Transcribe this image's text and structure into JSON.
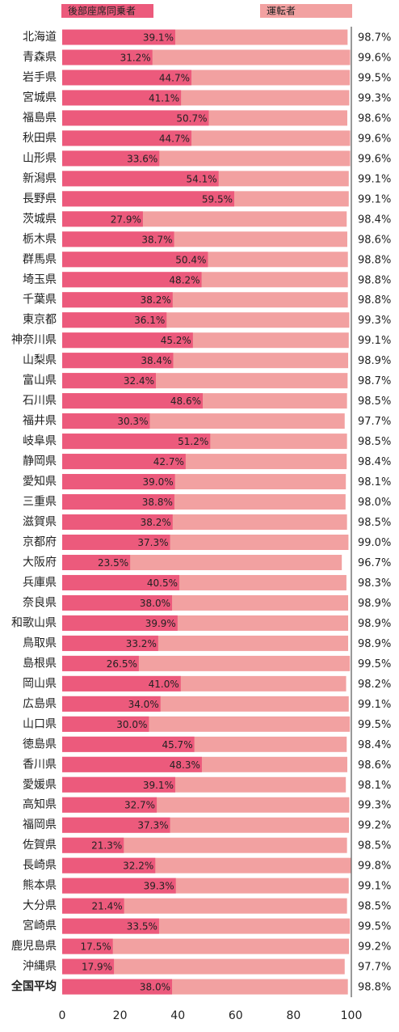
{
  "chart_data": {
    "type": "bar",
    "orientation": "horizontal",
    "legend": "top",
    "categories": [
      "北海道",
      "青森県",
      "岩手県",
      "宮城県",
      "福島県",
      "秋田県",
      "山形県",
      "新潟県",
      "長野県",
      "茨城県",
      "栃木県",
      "群馬県",
      "埼玉県",
      "千葉県",
      "東京都",
      "神奈川県",
      "山梨県",
      "富山県",
      "石川県",
      "福井県",
      "岐阜県",
      "静岡県",
      "愛知県",
      "三重県",
      "滋賀県",
      "京都府",
      "大阪府",
      "兵庫県",
      "奈良県",
      "和歌山県",
      "鳥取県",
      "島根県",
      "岡山県",
      "広島県",
      "山口県",
      "徳島県",
      "香川県",
      "愛媛県",
      "高知県",
      "福岡県",
      "佐賀県",
      "長崎県",
      "熊本県",
      "大分県",
      "宮崎県",
      "鹿児島県",
      "沖縄県",
      "全国平均"
    ],
    "series": [
      {
        "name": "後部座席同乗者",
        "color": "#ec5a7c",
        "values": [
          39.1,
          31.2,
          44.7,
          41.1,
          50.7,
          44.7,
          33.6,
          54.1,
          59.5,
          27.9,
          38.7,
          50.4,
          48.2,
          38.2,
          36.1,
          45.2,
          38.4,
          32.4,
          48.6,
          30.3,
          51.2,
          42.7,
          39.0,
          38.8,
          38.2,
          37.3,
          23.5,
          40.5,
          38.0,
          39.9,
          33.2,
          26.5,
          41.0,
          34.0,
          30.0,
          45.7,
          48.3,
          39.1,
          32.7,
          37.3,
          21.3,
          32.2,
          39.3,
          21.4,
          33.5,
          17.5,
          17.9,
          38.0
        ],
        "value_labels": [
          "39.1%",
          "31.2%",
          "44.7%",
          "41.1%",
          "50.7%",
          "44.7%",
          "33.6%",
          "54.1%",
          "59.5%",
          "27.9%",
          "38.7%",
          "50.4%",
          "48.2%",
          "38.2%",
          "36.1%",
          "45.2%",
          "38.4%",
          "32.4%",
          "48.6%",
          "30.3%",
          "51.2%",
          "42.7%",
          "39.0%",
          "38.8%",
          "38.2%",
          "37.3%",
          "23.5%",
          "40.5%",
          "38.0%",
          "39.9%",
          "33.2%",
          "26.5%",
          "41.0%",
          "34.0%",
          "30.0%",
          "45.7%",
          "48.3%",
          "39.1%",
          "32.7%",
          "37.3%",
          "21.3%",
          "32.2%",
          "39.3%",
          "21.4%",
          "33.5%",
          "17.5%",
          "17.9%",
          "38.0%"
        ]
      },
      {
        "name": "運転者",
        "color": "#f2a1a1",
        "values": [
          98.7,
          99.6,
          99.5,
          99.3,
          98.6,
          99.6,
          99.6,
          99.1,
          99.1,
          98.4,
          98.6,
          98.8,
          98.8,
          98.8,
          99.3,
          99.1,
          98.9,
          98.7,
          98.5,
          97.7,
          98.5,
          98.4,
          98.1,
          98.0,
          98.5,
          99.0,
          96.7,
          98.3,
          98.9,
          98.9,
          98.9,
          99.5,
          98.2,
          99.1,
          99.5,
          98.4,
          98.6,
          98.1,
          99.3,
          99.2,
          98.5,
          99.8,
          99.1,
          98.5,
          99.5,
          99.2,
          97.7,
          98.8
        ],
        "value_labels": [
          "98.7%",
          "99.6%",
          "99.5%",
          "99.3%",
          "98.6%",
          "99.6%",
          "99.6%",
          "99.1%",
          "99.1%",
          "98.4%",
          "98.6%",
          "98.8%",
          "98.8%",
          "98.8%",
          "99.3%",
          "99.1%",
          "98.9%",
          "98.7%",
          "98.5%",
          "97.7%",
          "98.5%",
          "98.4%",
          "98.1%",
          "98.0%",
          "98.5%",
          "99.0%",
          "96.7%",
          "98.3%",
          "98.9%",
          "98.9%",
          "98.9%",
          "99.5%",
          "98.2%",
          "99.1%",
          "99.5%",
          "98.4%",
          "98.6%",
          "98.1%",
          "99.3%",
          "99.2%",
          "98.5%",
          "99.8%",
          "99.1%",
          "98.5%",
          "99.5%",
          "99.2%",
          "97.7%",
          "98.8%"
        ]
      }
    ],
    "xlim": [
      0,
      100
    ],
    "xticks": [
      0,
      20,
      40,
      60,
      80,
      100
    ]
  }
}
